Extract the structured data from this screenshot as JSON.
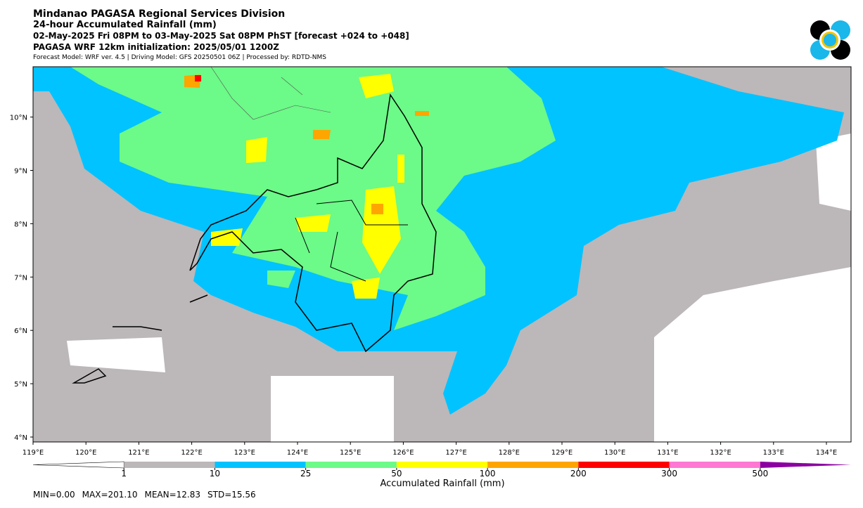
{
  "header": {
    "title": "Mindanao PAGASA Regional Services Division",
    "subtitle": "24-hour Accumulated Rainfall (mm)",
    "period": "02-May-2025 Fri 08PM to 03-May-2025 Sat 08PM PhST [forecast +024 to +048]",
    "init": "PAGASA WRF 12km initialization: 2025/05/01 1200Z",
    "model": "Forecast Model: WRF ver. 4.5 | Driving Model: GFS 20250501 06Z | Processed by: RDTD-NMS"
  },
  "map": {
    "lon_labels": [
      "119°E",
      "120°E",
      "121°E",
      "122°E",
      "123°E",
      "124°E",
      "125°E",
      "126°E",
      "127°E",
      "128°E",
      "129°E",
      "130°E",
      "131°E",
      "132°E",
      "133°E",
      "134°E"
    ],
    "lat_labels": [
      "4°N",
      "5°N",
      "6°N",
      "7°N",
      "8°N",
      "9°N",
      "10°N"
    ]
  },
  "colorbar": {
    "label": "Accumulated Rainfall (mm)",
    "ticks": [
      1,
      10,
      25,
      50,
      100,
      200,
      300,
      500
    ],
    "under_color": "#ffffff",
    "colors": [
      "#bcb7b9",
      "#00c3ff",
      "#6cfa88",
      "#ffff00",
      "#ffa500",
      "#ff0000",
      "#ff78d2"
    ],
    "over_color": "#8b00a0"
  },
  "stats": [
    "MIN=0.00",
    "MAX=201.10",
    "MEAN=12.83",
    "STD=15.56"
  ]
}
